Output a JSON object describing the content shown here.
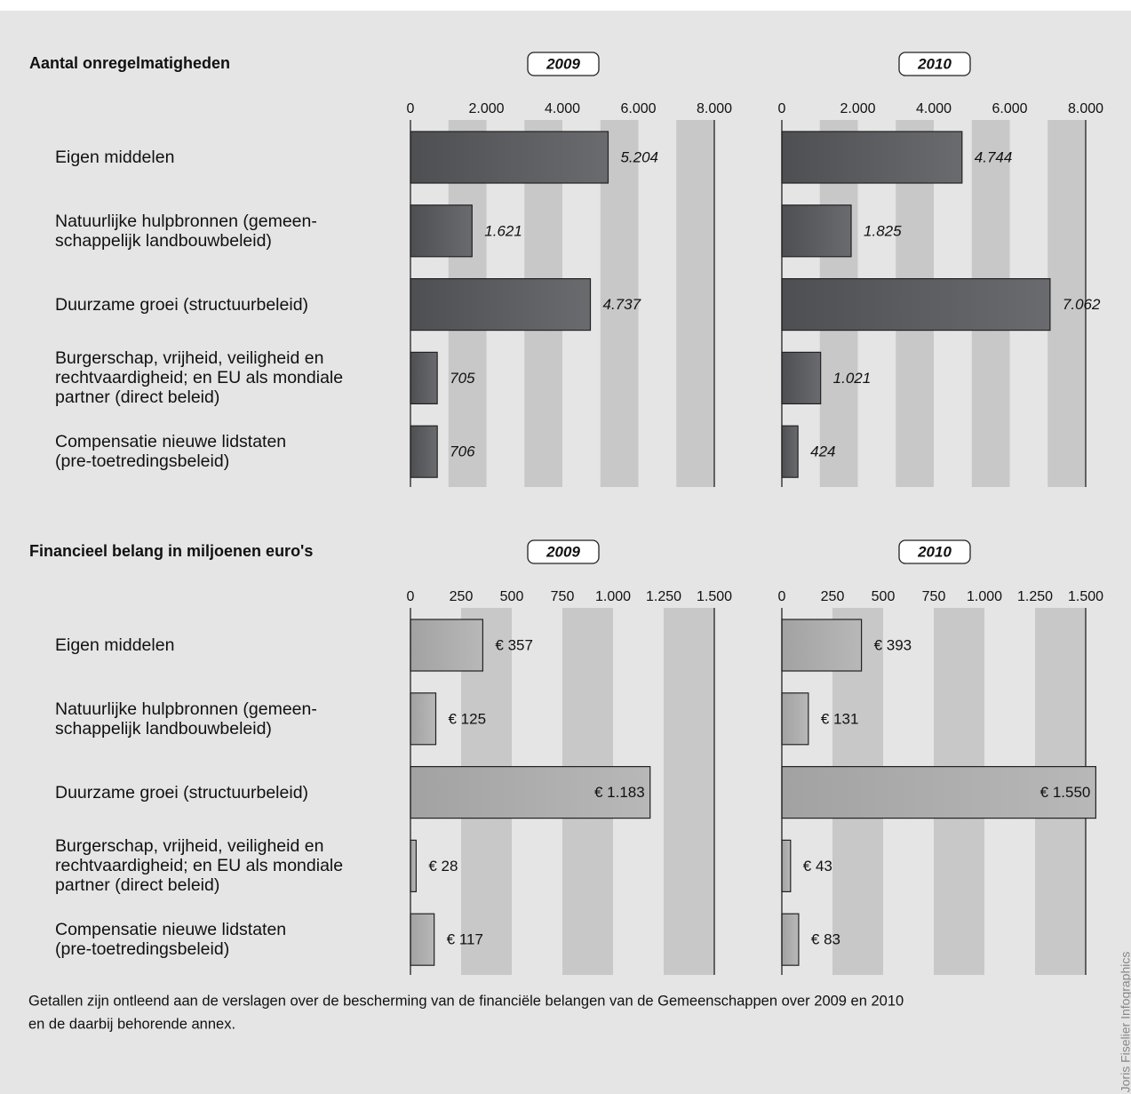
{
  "chart_data": [
    {
      "type": "bar",
      "title": "Aantal onregelmatigheden",
      "categories": [
        "Eigen middelen",
        "Natuurlijke hulpbronnen (gemeen-\nschappelijk landbouwbeleid)",
        "Duurzame groei (structuurbeleid)",
        "Burgerschap, vrijheid, veiligheid en\nrechtvaardigheid; en EU als mondiale\npartner (direct beleid)",
        "Compensatie nieuwe lidstaten\n(pre-toetredingsbeleid)"
      ],
      "color": "#5b5c5f",
      "series": [
        {
          "name": "2009",
          "values": [
            5204,
            1621,
            4737,
            705,
            706
          ],
          "value_labels": [
            "5.204",
            "1.621",
            "4.737",
            "705",
            "706"
          ]
        },
        {
          "name": "2010",
          "values": [
            4744,
            1825,
            7062,
            1021,
            424
          ],
          "value_labels": [
            "4.744",
            "1.825",
            "7.062",
            "1.021",
            "424"
          ]
        }
      ],
      "xlim": [
        0,
        8000
      ],
      "xticks": [
        0,
        {
          "value": 2000,
          "label": "2.000"
        },
        {
          "value": 4000,
          "label": "4.000"
        },
        {
          "value": 6000,
          "label": "6.000"
        },
        {
          "value": 8000,
          "label": "8.000"
        }
      ],
      "grid": true
    },
    {
      "type": "bar",
      "title": "Financieel belang in miljoenen euro's",
      "categories": [
        "Eigen middelen",
        "Natuurlijke hulpbronnen (gemeen-\nschappelijk landbouwbeleid)",
        "Duurzame groei (structuurbeleid)",
        "Burgerschap, vrijheid, veiligheid en\nrechtvaardigheid; en EU als mondiale\npartner (direct beleid)",
        "Compensatie nieuwe lidstaten\n(pre-toetredingsbeleid)"
      ],
      "color": "#ababab",
      "series": [
        {
          "name": "2009",
          "values": [
            357,
            125,
            1183,
            28,
            117
          ],
          "value_labels": [
            "€ 357",
            "€ 125",
            "€ 1.183",
            "€ 28",
            "€ 117"
          ]
        },
        {
          "name": "2010",
          "values": [
            393,
            131,
            1550,
            43,
            83
          ],
          "value_labels": [
            "€ 393",
            "€ 131",
            "€ 1.550",
            "€ 43",
            "€ 83"
          ]
        }
      ],
      "xlim": [
        0,
        1500
      ],
      "xticks": [
        0,
        250,
        500,
        750,
        {
          "value": 1000,
          "label": "1.000"
        },
        {
          "value": 1250,
          "label": "1.250"
        },
        {
          "value": 1500,
          "label": "1.500"
        }
      ],
      "grid": true
    }
  ],
  "footnote": [
    "Getallen zijn ontleend aan de verslagen over de bescherming van de financiële belangen van de Gemeenschappen over 2009 en 2010",
    "en de daarbij behorende annex."
  ],
  "credit": "Joris Fiselier Infographics"
}
